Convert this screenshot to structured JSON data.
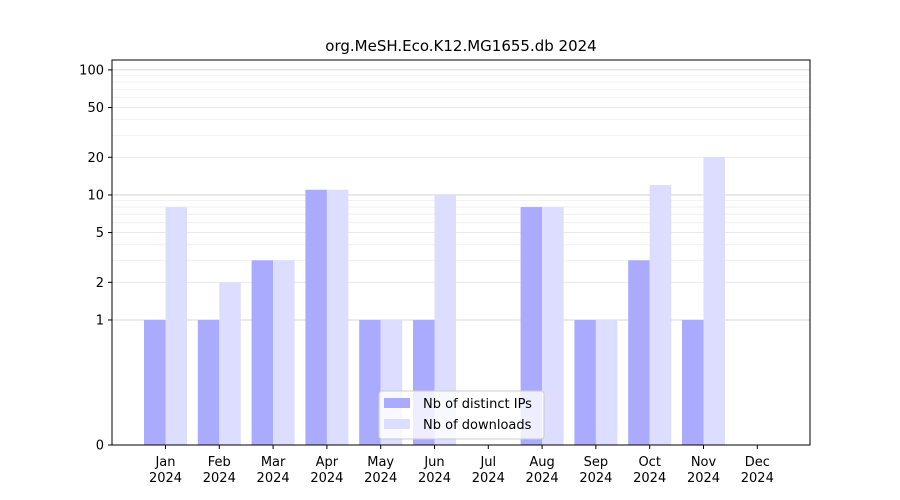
{
  "chart_data": {
    "type": "bar",
    "title": "org.MeSH.Eco.K12.MG1655.db 2024",
    "xlabel": "",
    "ylabel": "",
    "y_scale": "symlog",
    "ylim": [
      0,
      120
    ],
    "y_ticks": [
      0,
      1,
      2,
      5,
      10,
      20,
      50,
      100
    ],
    "grid": "horizontal",
    "legend_position": "lower-center",
    "categories": [
      "Jan\n2024",
      "Feb\n2024",
      "Mar\n2024",
      "Apr\n2024",
      "May\n2024",
      "Jun\n2024",
      "Jul\n2024",
      "Aug\n2024",
      "Sep\n2024",
      "Oct\n2024",
      "Nov\n2024",
      "Dec\n2024"
    ],
    "series": [
      {
        "name": "Nb of distinct IPs",
        "color": "#aaaaff",
        "values": [
          1,
          1,
          3,
          11,
          1,
          1,
          0,
          8,
          1,
          3,
          1,
          0
        ]
      },
      {
        "name": "Nb of downloads",
        "color": "#ddddff",
        "values": [
          8,
          2,
          3,
          11,
          1,
          10,
          0,
          8,
          1,
          12,
          20,
          0
        ]
      }
    ]
  }
}
